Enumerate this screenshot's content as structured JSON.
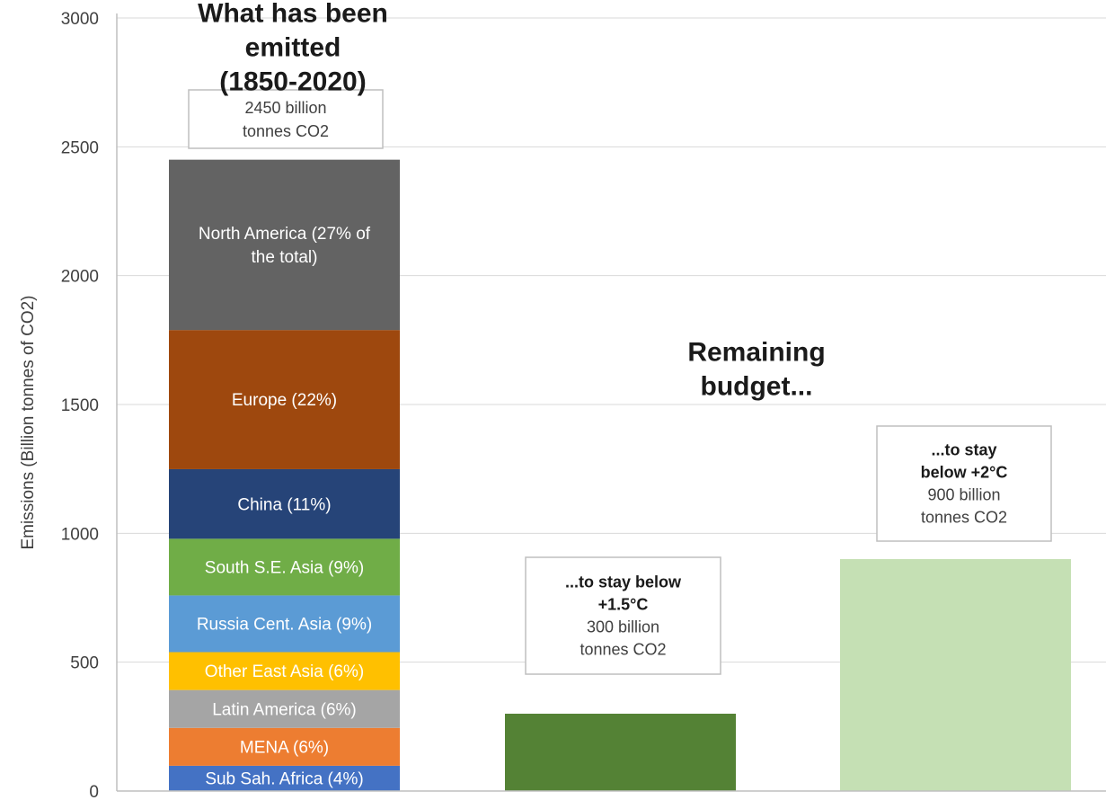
{
  "chart_data": {
    "type": "bar",
    "title": "",
    "xlabel": "",
    "ylabel": "Emissions (Billion tonnes of CO2)",
    "ylim": [
      0,
      3000
    ],
    "yticks": [
      0,
      500,
      1000,
      1500,
      2000,
      2500,
      3000
    ],
    "grid": true,
    "stacked_bar": {
      "heading": "What has been emitted (1850-2020)",
      "total_label": "2450 billion tonnes CO2",
      "total": 2450,
      "segments": [
        {
          "label": "Sub Sah. Africa (4%)",
          "value": 98,
          "color": "#4472c4",
          "text_color": "#ffffff"
        },
        {
          "label": "MENA (6%)",
          "value": 147,
          "color": "#ed7d31",
          "text_color": "#ffffff"
        },
        {
          "label": "Latin America (6%)",
          "value": 147,
          "color": "#a5a5a5",
          "text_color": "#ffffff"
        },
        {
          "label": "Other East Asia (6%)",
          "value": 147,
          "color": "#ffc000",
          "text_color": "#ffffff"
        },
        {
          "label": "Russia Cent. Asia (9%)",
          "value": 220,
          "color": "#5b9bd5",
          "text_color": "#ffffff"
        },
        {
          "label": "South S.E. Asia (9%)",
          "value": 220,
          "color": "#70ad47",
          "text_color": "#ffffff"
        },
        {
          "label": "China (11%)",
          "value": 270,
          "color": "#264478",
          "text_color": "#ffffff"
        },
        {
          "label": "Europe (22%)",
          "value": 540,
          "color": "#9e480e",
          "text_color": "#ffffff"
        },
        {
          "label": "North America (27% of the total)",
          "value": 661,
          "color": "#636363",
          "text_color": "#ffffff"
        }
      ]
    },
    "remaining_heading": "Remaining budget...",
    "budget_bars": [
      {
        "bold_label": "...to stay below +1.5°C",
        "label": "300 billion tonnes CO2",
        "value": 300,
        "color": "#548235"
      },
      {
        "bold_label": "...to stay below +2°C",
        "label": "900 billion tonnes CO2",
        "value": 900,
        "color": "#c5e0b4"
      }
    ]
  }
}
